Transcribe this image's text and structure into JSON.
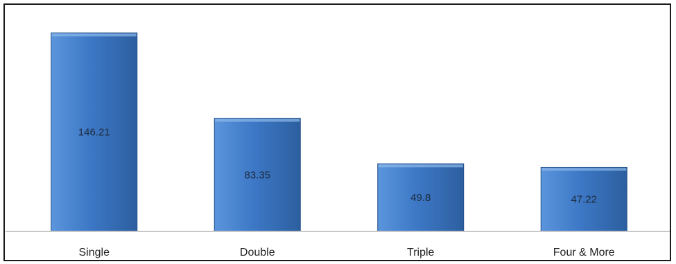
{
  "chart_data": {
    "type": "bar",
    "categories": [
      "Single",
      "Double",
      "Triple",
      "Four & More"
    ],
    "values": [
      146.21,
      83.35,
      49.8,
      47.22
    ],
    "data_labels": [
      "146.21",
      "83.35",
      "49.8",
      "47.22"
    ],
    "title": "",
    "xlabel": "",
    "ylabel": "",
    "ylim": [
      0,
      150
    ],
    "grid": false,
    "legend": "none",
    "colors": {
      "bar_top": "#5b95dc",
      "bar_mid": "#3d78c6",
      "bar_bottom": "#2c5f9f",
      "bar_edge": "#234f87",
      "baseline": "#c8c8c8",
      "frame": "#1a1a1a"
    }
  }
}
